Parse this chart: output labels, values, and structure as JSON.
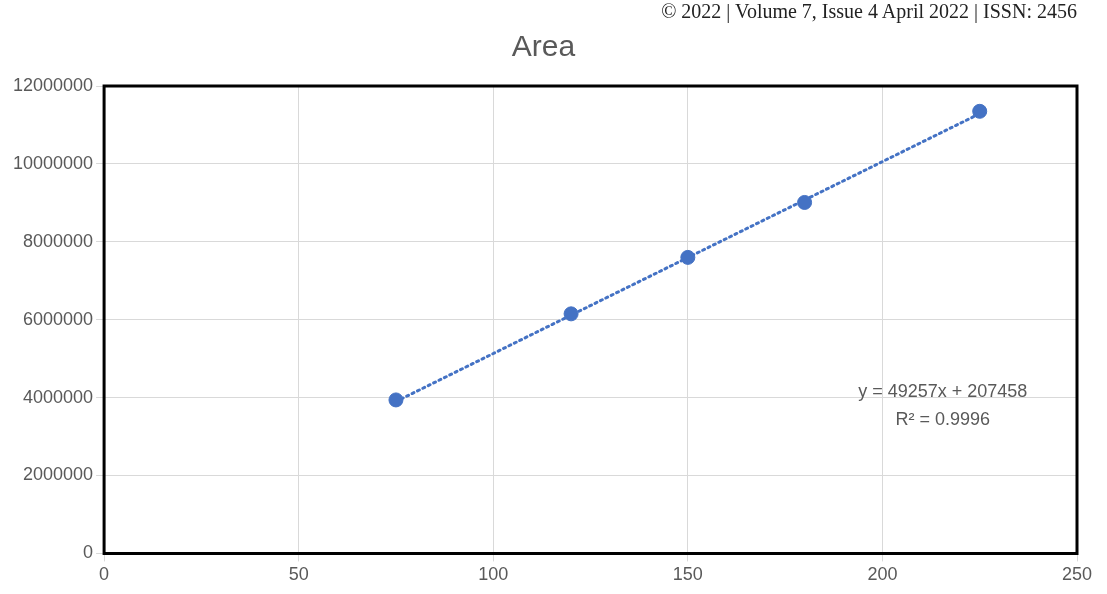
{
  "chart_data": {
    "type": "scatter",
    "title": "Area",
    "x": [
      75,
      120,
      150,
      180,
      225
    ],
    "series": [
      {
        "marker": "circle",
        "color": "#4472c4",
        "values": [
          3940000,
          6150000,
          7600000,
          9010000,
          11350000
        ]
      },
      {
        "type": "line",
        "marker": "none",
        "color": "#4472c4",
        "line_style": "dotted",
        "x": [
          75,
          225
        ],
        "values": [
          3900000,
          11290000
        ]
      }
    ],
    "xlim": [
      0,
      250
    ],
    "xticks": [
      0,
      50,
      100,
      150,
      200,
      250
    ],
    "ylim": [
      0,
      12000000
    ],
    "yticks": [
      0,
      2000000,
      4000000,
      6000000,
      8000000,
      10000000,
      12000000
    ],
    "grid": true,
    "legend": false,
    "annotations": [
      "© 2022 | Volume 7, Issue 4 April 2022 | ISSN: 2456",
      "y = 49257x + 207458",
      "R² = 0.9996"
    ]
  }
}
